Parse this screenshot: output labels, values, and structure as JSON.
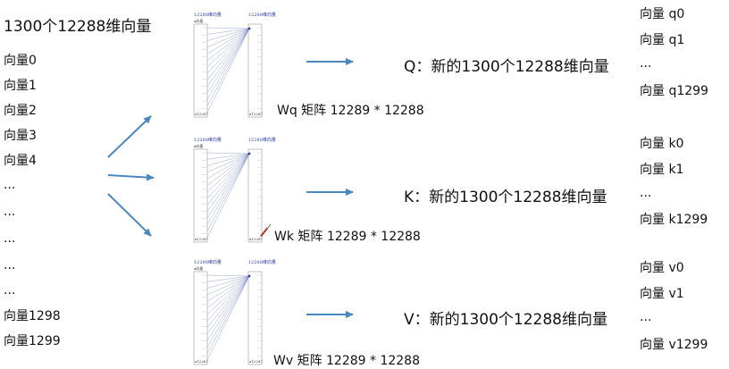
{
  "input": {
    "title": "1300个12288维向量",
    "vectors": [
      "向量0",
      "向量1",
      "向量2",
      "向量3",
      "向量4",
      "...",
      "...",
      "...",
      "...",
      "...",
      "向量1298",
      "向量1299"
    ]
  },
  "matrix_header": {
    "left": "12288维向量",
    "right": "12288维向量",
    "left_sub": "x向量",
    "left_foot": "x12287",
    "right_foot": "x12287"
  },
  "rows": [
    {
      "matrix_label": "Wq 矩阵 12289 * 12288",
      "result": "Q：新的1300个12288维向量",
      "outputs": [
        "向量 q0",
        "向量 q1",
        "...",
        "向量 q1299"
      ]
    },
    {
      "matrix_label": "Wk 矩阵 12289 * 12288",
      "result": "K：新的1300个12288维向量",
      "outputs": [
        "向量 k0",
        "向量 k1",
        "...",
        "向量 k1299"
      ]
    },
    {
      "matrix_label": "Wv 矩阵 12289 * 12288",
      "result": "V：新的1300个12288维向量",
      "outputs": [
        "向量 v0",
        "向量 v1",
        "...",
        "向量 v1299"
      ]
    }
  ],
  "colors": {
    "arrow": "#4a86c0",
    "lines": "#7c8cc8",
    "cursor": "#c0392b"
  }
}
